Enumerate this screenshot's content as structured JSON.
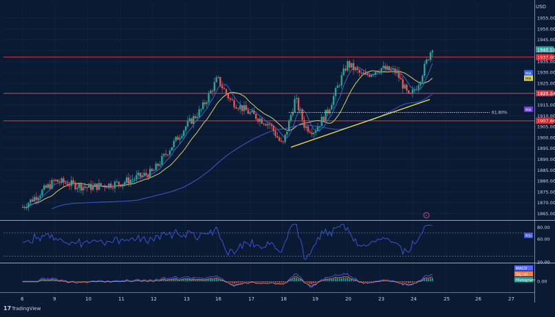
{
  "header": {
    "currency": "USD"
  },
  "brand": {
    "name": "TradingView"
  },
  "colors": {
    "background": "#0b1a33",
    "grid": "#17294a",
    "text": "#c9d2e3",
    "bullish": "#26a69a",
    "bearish": "#ef5350",
    "support_resistance": "#e5212a",
    "trendline": "#f4e542",
    "ma_fast": "#d8d36a",
    "ma_slow": "#3b5bd8",
    "rsi": "#3f58e6",
    "macd": "#4d6cff",
    "signal": "#ff7a45",
    "histogram": "#26a69a",
    "price_tag_green": "#26a69a",
    "badge_ma_blue": "#2f62d9",
    "badge_ma_yellow": "#d8d36a",
    "badge_ma_purple": "#6a3fd6"
  },
  "chart_data": {
    "type": "candlestick",
    "x_axis": {
      "ticks": [
        "6",
        "9",
        "10",
        "11",
        "12",
        "13",
        "16",
        "17",
        "18",
        "19",
        "20",
        "23",
        "24",
        "25",
        "26",
        "27"
      ]
    },
    "price_axis": {
      "ylim": [
        1862,
        1962
      ],
      "ticks": [
        "1865.00",
        "1870.00",
        "1875.00",
        "1880.00",
        "1885.00",
        "1890.00",
        "1895.00",
        "1900.00",
        "1905.00",
        "1910.00",
        "1915.00",
        "1920.00",
        "1925.00",
        "1930.00",
        "1935.00",
        "1940.00",
        "1945.00",
        "1950.00",
        "1955.00"
      ],
      "tick_values": [
        1865,
        1870,
        1875,
        1880,
        1885,
        1890,
        1895,
        1900,
        1905,
        1910,
        1915,
        1920,
        1925,
        1930,
        1935,
        1940,
        1945,
        1950,
        1955
      ]
    },
    "horizontal_levels": [
      {
        "label": "1937.00",
        "value": 1937.0
      },
      {
        "label": "1920.34",
        "value": 1920.34
      },
      {
        "label": "1907.66",
        "value": 1907.66
      }
    ],
    "current_price": {
      "label": "1940.51",
      "value": 1940.51
    },
    "fib_level": {
      "label": "61.80%",
      "value": 1911.5
    },
    "trendline": {
      "start": {
        "day": "18",
        "value": 1895.5
      },
      "end": {
        "day": "24",
        "value": 1917.5
      }
    },
    "indicator_badges": [
      {
        "label": "MA",
        "value": 1929.8
      },
      {
        "label": "MA",
        "value": 1927.3
      },
      {
        "label": "MA",
        "value": 1913.0
      }
    ],
    "series_notes": "Price path: rally from ~1868 (day 6) to ~1928 (day 16), pullback to ~1896 (day 18), recovery to ~1937 (day 20), consolidation, breakout to ~1942 (day 24).",
    "rsi": {
      "title": "RSI",
      "ticks": [
        "80.00",
        "60.00",
        "20.00"
      ],
      "tick_values": [
        80,
        60,
        20
      ],
      "ylim": [
        20,
        90
      ],
      "bands": [
        70,
        30
      ]
    },
    "macd": {
      "labels": [
        "MACD",
        "Signal",
        "Histogram"
      ],
      "ticks": [
        "0.00"
      ],
      "tick_values": [
        0
      ]
    }
  }
}
